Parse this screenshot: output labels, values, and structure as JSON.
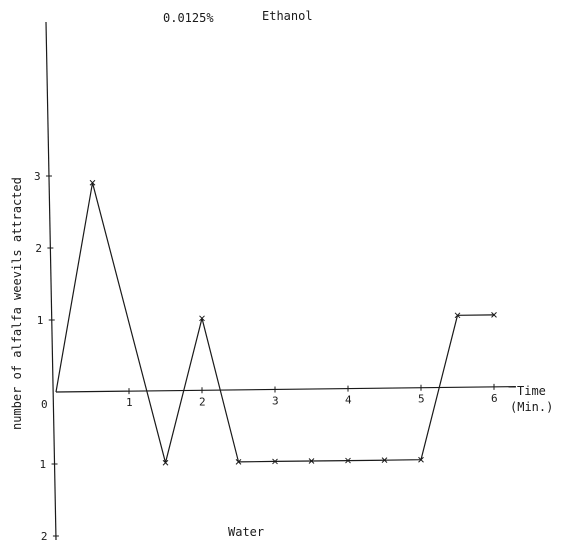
{
  "chart_data": {
    "type": "line",
    "top_title_left": "0.0125%",
    "top_title_right": "Ethanol",
    "bottom_title": "Water",
    "ylabel": "number of alfalfa weevils attracted",
    "xlabel_line1": "Time",
    "xlabel_line2": "(Min.)",
    "x_ticks": [
      "1",
      "2",
      "3",
      "4",
      "5",
      "6"
    ],
    "y_ticks_up": [
      "1",
      "2",
      "3"
    ],
    "y_ticks_down": [
      "1",
      "2"
    ],
    "origin_label": "0",
    "xlim": [
      0,
      6.3
    ],
    "ylim": [
      -2,
      3
    ],
    "series": [
      {
        "x": [
          0,
          0.5,
          1.5,
          2,
          2.5,
          3,
          3.5,
          4,
          4.5,
          5,
          5.5,
          6
        ],
        "values": [
          0,
          2.9,
          -1,
          1,
          -1,
          -1,
          -1,
          -1,
          -1,
          -1,
          1,
          1
        ]
      }
    ]
  }
}
